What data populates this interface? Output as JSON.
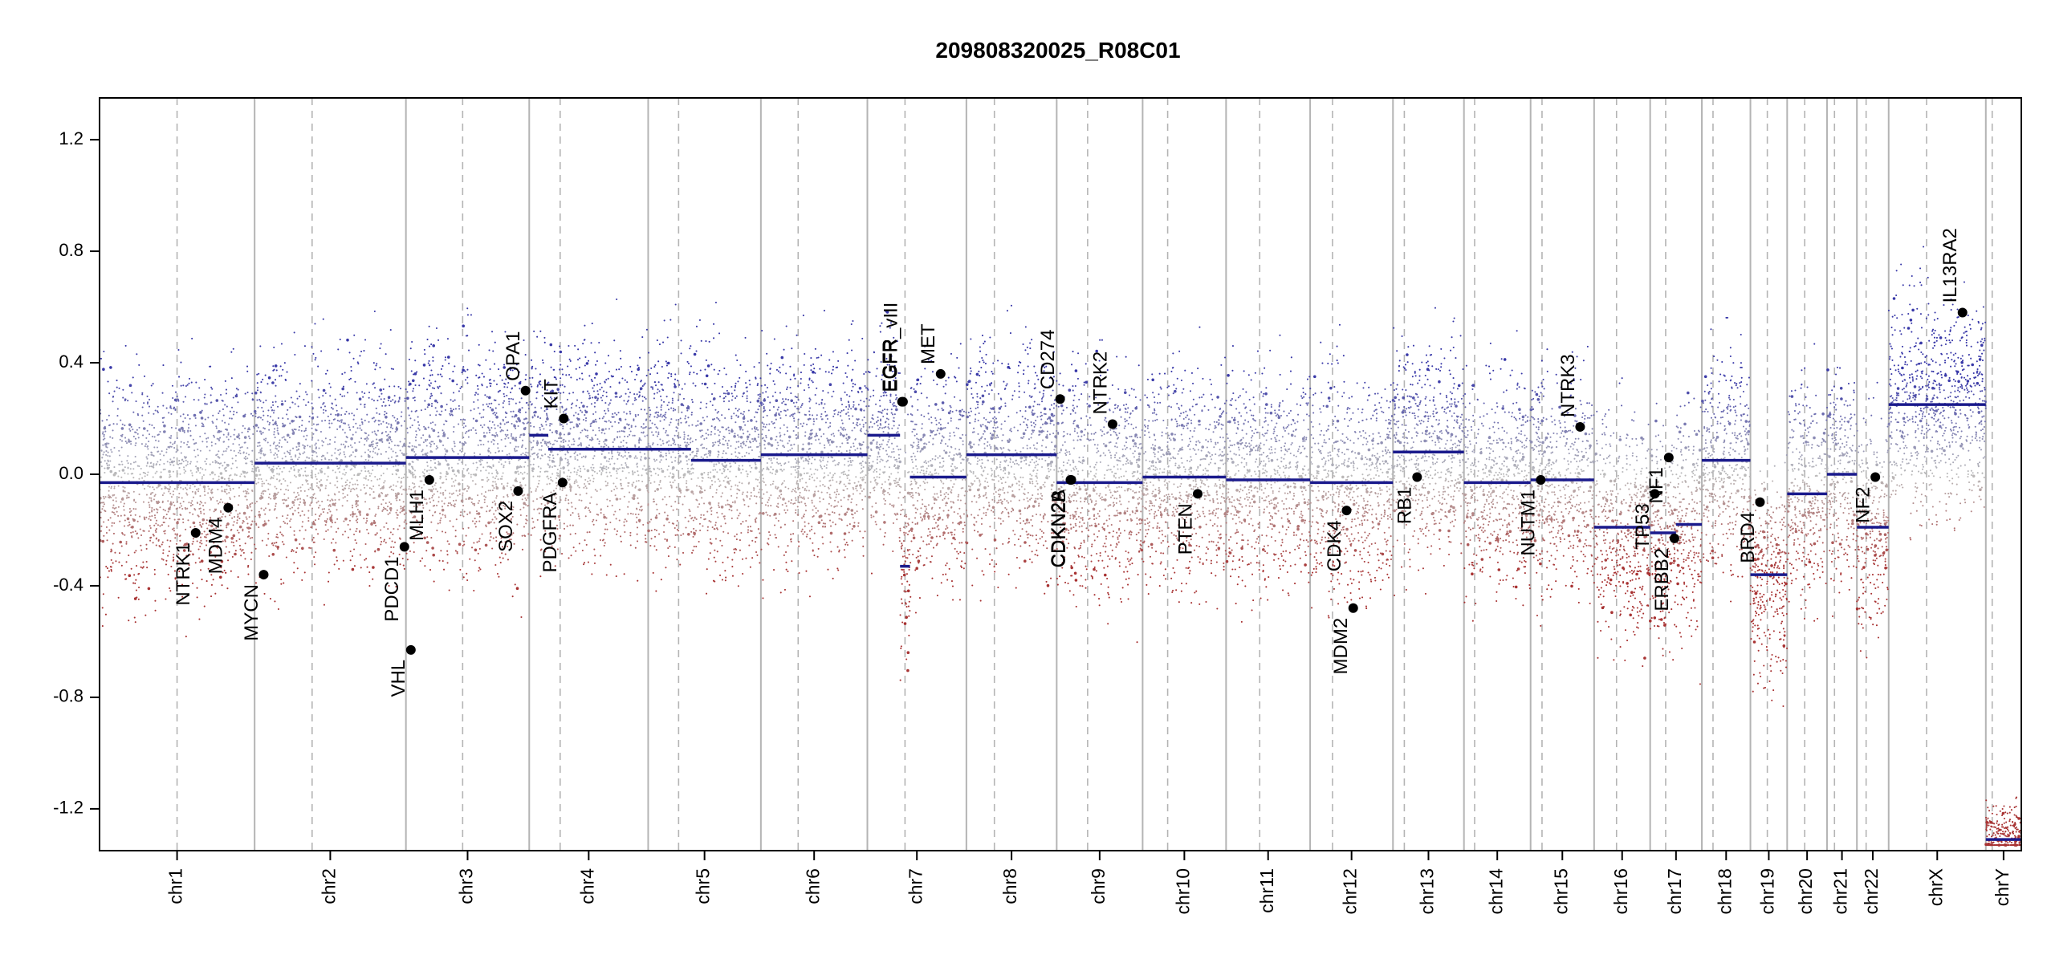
{
  "chart_data": {
    "type": "scatter",
    "title": "209808320025_R08C01",
    "xlabel": "",
    "ylabel": "",
    "ylim": [
      -1.35,
      1.35
    ],
    "yticks": [
      -1.2,
      -0.8,
      -0.4,
      0.0,
      0.4,
      0.8,
      1.2
    ],
    "ytick_labels": [
      "-1.2",
      "-0.8",
      "-0.4",
      "0.0",
      "0.4",
      "0.8",
      "1.2"
    ],
    "grid": false,
    "colors": {
      "gain": "#3838a8",
      "loss": "#a83232",
      "neutral": "#bbbbbb",
      "segment": "#1a1a8c",
      "gene_point": "#000000",
      "chrom_border": "#b4b4b4",
      "centromere": "#b4b4b4",
      "frame": "#000000"
    },
    "chromosomes": [
      {
        "name": "chr1",
        "label": "chr1",
        "size": 249,
        "centromere": 0.5
      },
      {
        "name": "chr2",
        "label": "chr2",
        "size": 243,
        "centromere": 0.38
      },
      {
        "name": "chr3",
        "label": "chr3",
        "size": 198,
        "centromere": 0.46
      },
      {
        "name": "chr4",
        "label": "chr4",
        "size": 191,
        "centromere": 0.26
      },
      {
        "name": "chr5",
        "label": "chr5",
        "size": 181,
        "centromere": 0.27
      },
      {
        "name": "chr6",
        "label": "chr6",
        "size": 171,
        "centromere": 0.35
      },
      {
        "name": "chr7",
        "label": "chr7",
        "size": 159,
        "centromere": 0.38
      },
      {
        "name": "chr8",
        "label": "chr8",
        "size": 145,
        "centromere": 0.31
      },
      {
        "name": "chr9",
        "label": "chr9",
        "size": 138,
        "centromere": 0.36
      },
      {
        "name": "chr10",
        "label": "chr10",
        "size": 134,
        "centromere": 0.3
      },
      {
        "name": "chr11",
        "label": "chr11",
        "size": 135,
        "centromere": 0.4
      },
      {
        "name": "chr12",
        "label": "chr12",
        "size": 133,
        "centromere": 0.27
      },
      {
        "name": "chr13",
        "label": "chr13",
        "size": 114,
        "centromere": 0.16
      },
      {
        "name": "chr14",
        "label": "chr14",
        "size": 107,
        "centromere": 0.16
      },
      {
        "name": "chr15",
        "label": "chr15",
        "size": 102,
        "centromere": 0.18
      },
      {
        "name": "chr16",
        "label": "chr16",
        "size": 90,
        "centromere": 0.4
      },
      {
        "name": "chr17",
        "label": "chr17",
        "size": 83,
        "centromere": 0.3
      },
      {
        "name": "chr18",
        "label": "chr18",
        "size": 78,
        "centromere": 0.23
      },
      {
        "name": "chr19",
        "label": "chr19",
        "size": 59,
        "centromere": 0.46
      },
      {
        "name": "chr20",
        "label": "chr20",
        "size": 64,
        "centromere": 0.44
      },
      {
        "name": "chr21",
        "label": "chr21",
        "size": 48,
        "centromere": 0.25
      },
      {
        "name": "chr22",
        "label": "chr22",
        "size": 51,
        "centromere": 0.29
      },
      {
        "name": "chrX",
        "label": "chrX",
        "size": 156,
        "centromere": 0.39
      },
      {
        "name": "chrY",
        "label": "chrY",
        "size": 57,
        "centromere": 0.18
      }
    ],
    "segments": [
      {
        "chrom": "chr1",
        "start": 0,
        "end": 1,
        "value": -0.03
      },
      {
        "chrom": "chr2",
        "start": 0,
        "end": 1,
        "value": 0.04
      },
      {
        "chrom": "chr3",
        "start": 0,
        "end": 1,
        "value": 0.06
      },
      {
        "chrom": "chr4",
        "start": 0,
        "end": 0.16,
        "value": 0.14
      },
      {
        "chrom": "chr4",
        "start": 0.16,
        "end": 1,
        "value": 0.09
      },
      {
        "chrom": "chr5",
        "start": 0,
        "end": 0.38,
        "value": 0.09
      },
      {
        "chrom": "chr5",
        "start": 0.38,
        "end": 1,
        "value": 0.05
      },
      {
        "chrom": "chr6",
        "start": 0,
        "end": 1,
        "value": 0.07
      },
      {
        "chrom": "chr7",
        "start": 0,
        "end": 0.33,
        "value": 0.14
      },
      {
        "chrom": "chr7",
        "start": 0.33,
        "end": 0.43,
        "value": -0.33
      },
      {
        "chrom": "chr7",
        "start": 0.43,
        "end": 1,
        "value": -0.01
      },
      {
        "chrom": "chr8",
        "start": 0,
        "end": 1,
        "value": 0.07
      },
      {
        "chrom": "chr9",
        "start": 0,
        "end": 1,
        "value": -0.03
      },
      {
        "chrom": "chr10",
        "start": 0,
        "end": 1,
        "value": -0.01
      },
      {
        "chrom": "chr11",
        "start": 0,
        "end": 1,
        "value": -0.02
      },
      {
        "chrom": "chr12",
        "start": 0,
        "end": 1,
        "value": -0.03
      },
      {
        "chrom": "chr13",
        "start": 0,
        "end": 1,
        "value": 0.08
      },
      {
        "chrom": "chr14",
        "start": 0,
        "end": 1,
        "value": -0.03
      },
      {
        "chrom": "chr15",
        "start": 0,
        "end": 1,
        "value": -0.02
      },
      {
        "chrom": "chr16",
        "start": 0,
        "end": 1,
        "value": -0.19
      },
      {
        "chrom": "chr17",
        "start": 0,
        "end": 0.5,
        "value": -0.21
      },
      {
        "chrom": "chr17",
        "start": 0.5,
        "end": 1,
        "value": -0.18
      },
      {
        "chrom": "chr18",
        "start": 0,
        "end": 1,
        "value": 0.05
      },
      {
        "chrom": "chr19",
        "start": 0,
        "end": 1,
        "value": -0.36
      },
      {
        "chrom": "chr20",
        "start": 0,
        "end": 1,
        "value": -0.07
      },
      {
        "chrom": "chr21",
        "start": 0,
        "end": 1,
        "value": 0.0
      },
      {
        "chrom": "chr22",
        "start": 0,
        "end": 1,
        "value": -0.19
      },
      {
        "chrom": "chrX",
        "start": 0,
        "end": 1,
        "value": 0.25
      },
      {
        "chrom": "chrY",
        "start": 0,
        "end": 1,
        "value": -1.31
      }
    ],
    "genes": [
      {
        "name": "NTRK1",
        "chrom": "chr1",
        "pos": 0.62,
        "value": -0.21
      },
      {
        "name": "MDM4",
        "chrom": "chr1",
        "pos": 0.83,
        "value": -0.12
      },
      {
        "name": "MYCN",
        "chrom": "chr2",
        "pos": 0.06,
        "value": -0.36
      },
      {
        "name": "PDCD1",
        "chrom": "chr2",
        "pos": 0.99,
        "value": -0.26
      },
      {
        "name": "VHL",
        "chrom": "chr3",
        "pos": 0.04,
        "value": -0.63
      },
      {
        "name": "MLH1",
        "chrom": "chr3",
        "pos": 0.19,
        "value": -0.02
      },
      {
        "name": "SOX2",
        "chrom": "chr3",
        "pos": 0.91,
        "value": -0.06
      },
      {
        "name": "OPA1",
        "chrom": "chr3",
        "pos": 0.97,
        "value": 0.3
      },
      {
        "name": "PDGFRA",
        "chrom": "chr4",
        "pos": 0.28,
        "value": -0.03
      },
      {
        "name": "KIT",
        "chrom": "chr4",
        "pos": 0.29,
        "value": 0.2
      },
      {
        "name": "EGFR",
        "chrom": "chr7",
        "pos": 0.35,
        "value": 0.26
      },
      {
        "name": "EGFR_vIII",
        "chrom": "chr7",
        "pos": 0.36,
        "value": 0.26
      },
      {
        "name": "MET",
        "chrom": "chr7",
        "pos": 0.74,
        "value": 0.36
      },
      {
        "name": "CD274",
        "chrom": "chr9",
        "pos": 0.04,
        "value": 0.27
      },
      {
        "name": "CDKN2A",
        "chrom": "chr9",
        "pos": 0.16,
        "value": -0.02
      },
      {
        "name": "CDKN2B",
        "chrom": "chr9",
        "pos": 0.17,
        "value": -0.02
      },
      {
        "name": "NTRK2",
        "chrom": "chr9",
        "pos": 0.65,
        "value": 0.18
      },
      {
        "name": "PTEN",
        "chrom": "chr10",
        "pos": 0.66,
        "value": -0.07
      },
      {
        "name": "CDK4",
        "chrom": "chr12",
        "pos": 0.44,
        "value": -0.13
      },
      {
        "name": "MDM2",
        "chrom": "chr12",
        "pos": 0.52,
        "value": -0.48
      },
      {
        "name": "RB1",
        "chrom": "chr13",
        "pos": 0.34,
        "value": -0.01
      },
      {
        "name": "NUTM1",
        "chrom": "chr15",
        "pos": 0.16,
        "value": -0.02
      },
      {
        "name": "NTRK3",
        "chrom": "chr15",
        "pos": 0.78,
        "value": 0.17
      },
      {
        "name": "TP53",
        "chrom": "chr17",
        "pos": 0.09,
        "value": -0.07
      },
      {
        "name": "NF1",
        "chrom": "chr17",
        "pos": 0.36,
        "value": 0.06
      },
      {
        "name": "ERBB2",
        "chrom": "chr17",
        "pos": 0.47,
        "value": -0.23
      },
      {
        "name": "BRD4",
        "chrom": "chr19",
        "pos": 0.26,
        "value": -0.1
      },
      {
        "name": "NF2",
        "chrom": "chr22",
        "pos": 0.58,
        "value": -0.01
      },
      {
        "name": "IL13RA2",
        "chrom": "chrX",
        "pos": 0.76,
        "value": 0.58
      }
    ]
  }
}
